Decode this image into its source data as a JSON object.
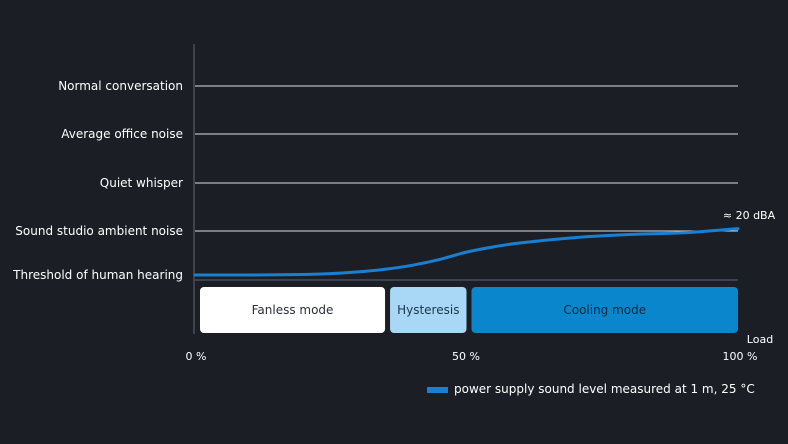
{
  "chart_data": {
    "type": "line",
    "y_levels": [
      "Threshold of human hearing",
      "Sound studio ambient noise",
      "Quiet whisper",
      "Average office noise",
      "Normal conversation"
    ],
    "x_ticks": [
      "0 %",
      "50 %",
      "100 %"
    ],
    "xlabel": "Load",
    "xlim": [
      0,
      100
    ],
    "series": [
      {
        "name": "power supply sound level measured at 1 m, 25 °C",
        "color": "#1a7fd1",
        "x": [
          0,
          10,
          20,
          25,
          30,
          35,
          40,
          45,
          50,
          55,
          60,
          70,
          80,
          90,
          100
        ],
        "y": [
          0.0,
          0.0,
          0.01,
          0.03,
          0.07,
          0.13,
          0.22,
          0.35,
          0.52,
          0.64,
          0.73,
          0.85,
          0.92,
          0.96,
          1.05
        ]
      }
    ],
    "annotation": {
      "text": "≈ 20 dBA",
      "x": 100
    },
    "modes": [
      {
        "label": "Fanless mode",
        "from": 0,
        "to": 35,
        "bg": "#ffffff",
        "fg": "#2b2f36"
      },
      {
        "label": "Hysteresis",
        "from": 35,
        "to": 50,
        "bg": "#a8d8f5",
        "fg": "#1b3550"
      },
      {
        "label": "Cooling mode",
        "from": 50,
        "to": 100,
        "bg": "#0a86cc",
        "fg": "#0f2a44"
      }
    ],
    "legend_placement": "bottom-right",
    "grid": true
  }
}
